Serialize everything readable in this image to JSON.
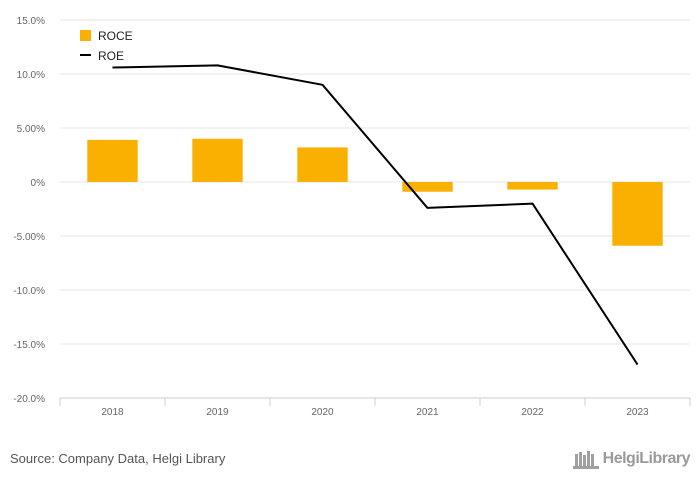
{
  "chart_data": {
    "type": "bar",
    "categories": [
      "2018",
      "2019",
      "2020",
      "2021",
      "2022",
      "2023"
    ],
    "series": [
      {
        "name": "ROCE",
        "type": "bar",
        "color": "#F9B000",
        "values": [
          3.9,
          4.0,
          3.2,
          -0.9,
          -0.7,
          -5.9
        ]
      },
      {
        "name": "ROE",
        "type": "line",
        "color": "#000000",
        "values": [
          10.6,
          10.8,
          9.0,
          -2.4,
          -2.0,
          -16.9
        ]
      }
    ],
    "ylim": [
      -20,
      15
    ],
    "yticks": [
      15,
      10,
      5,
      0,
      -5,
      -10,
      -15,
      -20
    ],
    "ytick_labels": [
      "15.0%",
      "10.0%",
      "5.00%",
      "0%",
      "-5.00%",
      "-10.0%",
      "-15.0%",
      "-20.0%"
    ],
    "grid": true,
    "legend_position": "top-left",
    "title": "",
    "xlabel": "",
    "ylabel": ""
  },
  "footer": {
    "source": "Source: Company Data, Helgi Library",
    "brand": "HelgiLibrary"
  }
}
